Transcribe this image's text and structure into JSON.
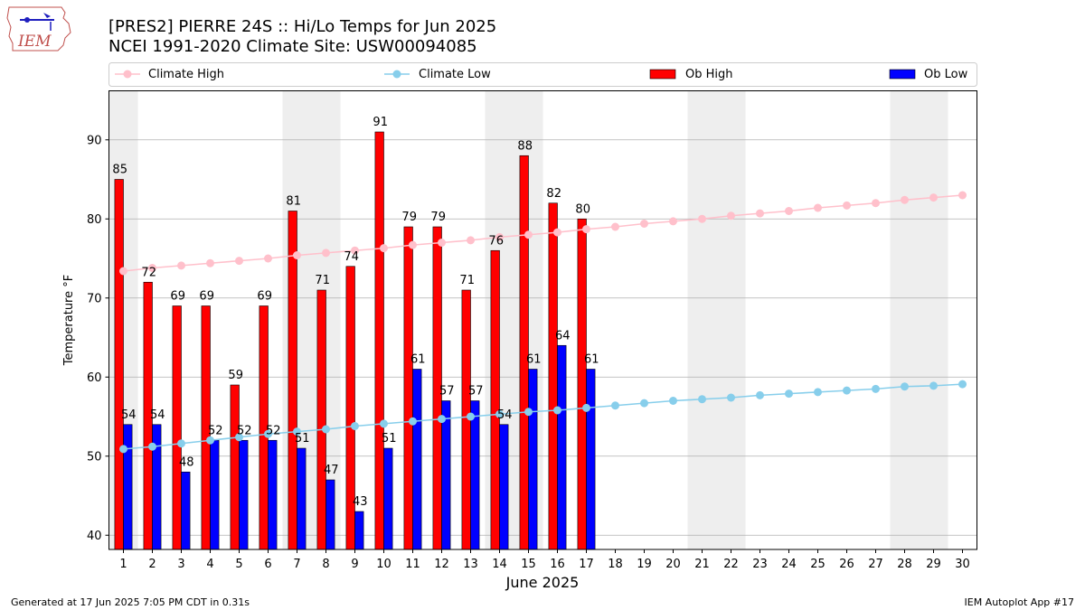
{
  "header": {
    "logo_text": "IEM",
    "title_line1": "[PRES2] PIERRE 24S :: Hi/Lo Temps for Jun 2025",
    "title_line2": "NCEI 1991-2020 Climate Site: USW00094085"
  },
  "footer": {
    "generated": "Generated at 17 Jun 2025 7:05 PM CDT in 0.31s",
    "app": "IEM Autoplot App #17"
  },
  "colors": {
    "ob_high": "#ff0000",
    "ob_low": "#0000ff",
    "climate_high": "#ffc0cb",
    "climate_low": "#87ceeb",
    "weekend_shade": "#eeeeee"
  },
  "chart_data": {
    "type": "bar",
    "xlabel": "June 2025",
    "ylabel": "Temperature °F",
    "xlim": [
      0.5,
      30.5
    ],
    "ylim": [
      38.2,
      96.2
    ],
    "yticks": [
      40,
      50,
      60,
      70,
      80,
      90
    ],
    "grid": "horizontal",
    "legend_position": "top",
    "legend": [
      "Climate High",
      "Climate Low",
      "Ob High",
      "Ob Low"
    ],
    "days": [
      1,
      2,
      3,
      4,
      5,
      6,
      7,
      8,
      9,
      10,
      11,
      12,
      13,
      14,
      15,
      16,
      17,
      18,
      19,
      20,
      21,
      22,
      23,
      24,
      25,
      26,
      27,
      28,
      29,
      30
    ],
    "shaded_days": [
      [
        1,
        1
      ],
      [
        7,
        8
      ],
      [
        14,
        15
      ],
      [
        21,
        22
      ],
      [
        28,
        29
      ]
    ],
    "ob_high": [
      85,
      72,
      69,
      69,
      59,
      69,
      81,
      71,
      74,
      91,
      79,
      79,
      71,
      76,
      88,
      82,
      80
    ],
    "ob_low": [
      54,
      54,
      48,
      52,
      52,
      52,
      51,
      47,
      43,
      51,
      61,
      57,
      57,
      54,
      61,
      64,
      61
    ],
    "climate_high": [
      73.4,
      73.8,
      74.1,
      74.4,
      74.7,
      75.0,
      75.4,
      75.7,
      76.0,
      76.3,
      76.7,
      77.0,
      77.3,
      77.7,
      78.0,
      78.3,
      78.7,
      79.0,
      79.4,
      79.7,
      80.0,
      80.4,
      80.7,
      81.0,
      81.4,
      81.7,
      82.0,
      82.4,
      82.7,
      83.0
    ],
    "climate_low": [
      50.9,
      51.2,
      51.6,
      52.0,
      52.4,
      52.8,
      53.1,
      53.4,
      53.8,
      54.1,
      54.4,
      54.7,
      55.0,
      55.3,
      55.6,
      55.8,
      56.1,
      56.4,
      56.7,
      57.0,
      57.2,
      57.4,
      57.7,
      57.9,
      58.1,
      58.3,
      58.5,
      58.8,
      58.9,
      59.1
    ]
  }
}
